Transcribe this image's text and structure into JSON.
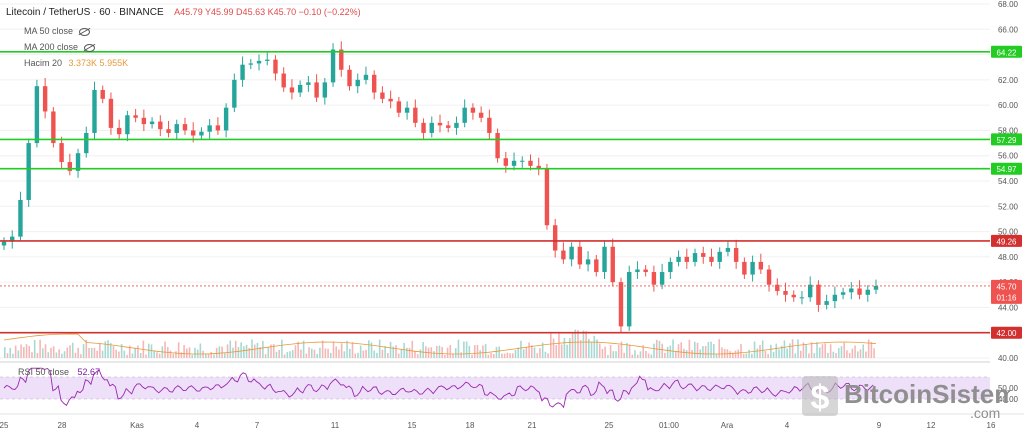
{
  "header": {
    "symbol": "Litecoin / TetherUS · 60 · BINANCE",
    "ohlc": "A45.79  Y45.99  D45.63  K45.70  −0.10 (−0.22%)",
    "ma50": "MA 50 close",
    "ma200": "MA 200 close",
    "volume_label": "Hacim 20",
    "volume_values": "3.373K  5.955K"
  },
  "rsi": {
    "label": "RSI 50 close",
    "value": "52.67",
    "ticks": [
      "50.00",
      "40.00"
    ]
  },
  "watermark": {
    "text": "BitcoinSistemi",
    "suffix": ".com"
  },
  "colors": {
    "up": "#26a69a",
    "down": "#ef5350",
    "support": "#22cc22",
    "resistance": "#d22f2f",
    "rsi_line": "#9c27b0",
    "rsi_band": "#ede0f8",
    "volume_ma": "#e69a3a"
  },
  "chart_data": {
    "type": "line",
    "title": "Litecoin / TetherUS · 60 · BINANCE",
    "xlabel": "",
    "ylabel": "",
    "ylim": [
      40,
      68
    ],
    "y_ticks": [
      40,
      42,
      44,
      46,
      48,
      50,
      52,
      54,
      56,
      58,
      60,
      62,
      64,
      66,
      68
    ],
    "y_tick_labels": [
      "40.00",
      "42.00",
      "44.00",
      "46.00",
      "48.00",
      "50.00",
      "52.00",
      "54.00",
      "56.00",
      "58.00",
      "60.00",
      "62.00",
      "64.00",
      "66.00",
      "68.00"
    ],
    "x_labels": [
      "25",
      "28",
      "Kas",
      "4",
      "7",
      "11",
      "15",
      "18",
      "21",
      "25",
      "01:00",
      "Ara",
      "4",
      "9",
      "12",
      "16"
    ],
    "horizontal_levels": [
      {
        "value": 64.22,
        "label": "64.22",
        "kind": "support"
      },
      {
        "value": 57.29,
        "label": "57.29",
        "kind": "support"
      },
      {
        "value": 54.97,
        "label": "54.97",
        "kind": "support"
      },
      {
        "value": 49.26,
        "label": "49.26",
        "kind": "resistance"
      },
      {
        "value": 42.0,
        "label": "42.00",
        "kind": "resistance"
      }
    ],
    "last_price": {
      "value": 45.7,
      "label": "45.70",
      "countdown": "01:16"
    },
    "series": [
      {
        "values": [
          49.2,
          49.6,
          52.5,
          57.0,
          61.5,
          59.5,
          57.0,
          55.5,
          54.8,
          56.2,
          57.8,
          61.2,
          60.5,
          58.2,
          57.7,
          59.2,
          59.0,
          58.5,
          58.7,
          58.1,
          57.8,
          58.5,
          58.0,
          57.6,
          57.9,
          58.4,
          58.0,
          59.8,
          62.0,
          63.2,
          63.3,
          63.5,
          63.6,
          62.5,
          61.4,
          61.0,
          61.6,
          61.8,
          60.6,
          61.8,
          64.4,
          62.8,
          61.5,
          62.0,
          62.4,
          61.0,
          60.5,
          60.3,
          59.4,
          59.8,
          58.6,
          57.8,
          58.6,
          58.4,
          58.2,
          58.6,
          59.8,
          59.4,
          59.0,
          57.8,
          55.8,
          55.2,
          55.6,
          55.6,
          55.2,
          55.0,
          50.5,
          48.5,
          47.8,
          48.8,
          47.4,
          47.8,
          46.8,
          48.8,
          46.0,
          42.5,
          46.8,
          47.0,
          46.8,
          45.8,
          46.8,
          47.6,
          48.0,
          47.6,
          48.3,
          48.0,
          47.6,
          48.4,
          48.7,
          47.6,
          46.6,
          47.6,
          47.0,
          45.8,
          45.3,
          45.0,
          44.8,
          44.8,
          45.8,
          44.2,
          44.5,
          45.0,
          45.2,
          45.5,
          45.0,
          45.4,
          45.7
        ]
      }
    ],
    "rsi_range": [
      30,
      70
    ],
    "rsi_band": [
      40,
      60
    ]
  }
}
